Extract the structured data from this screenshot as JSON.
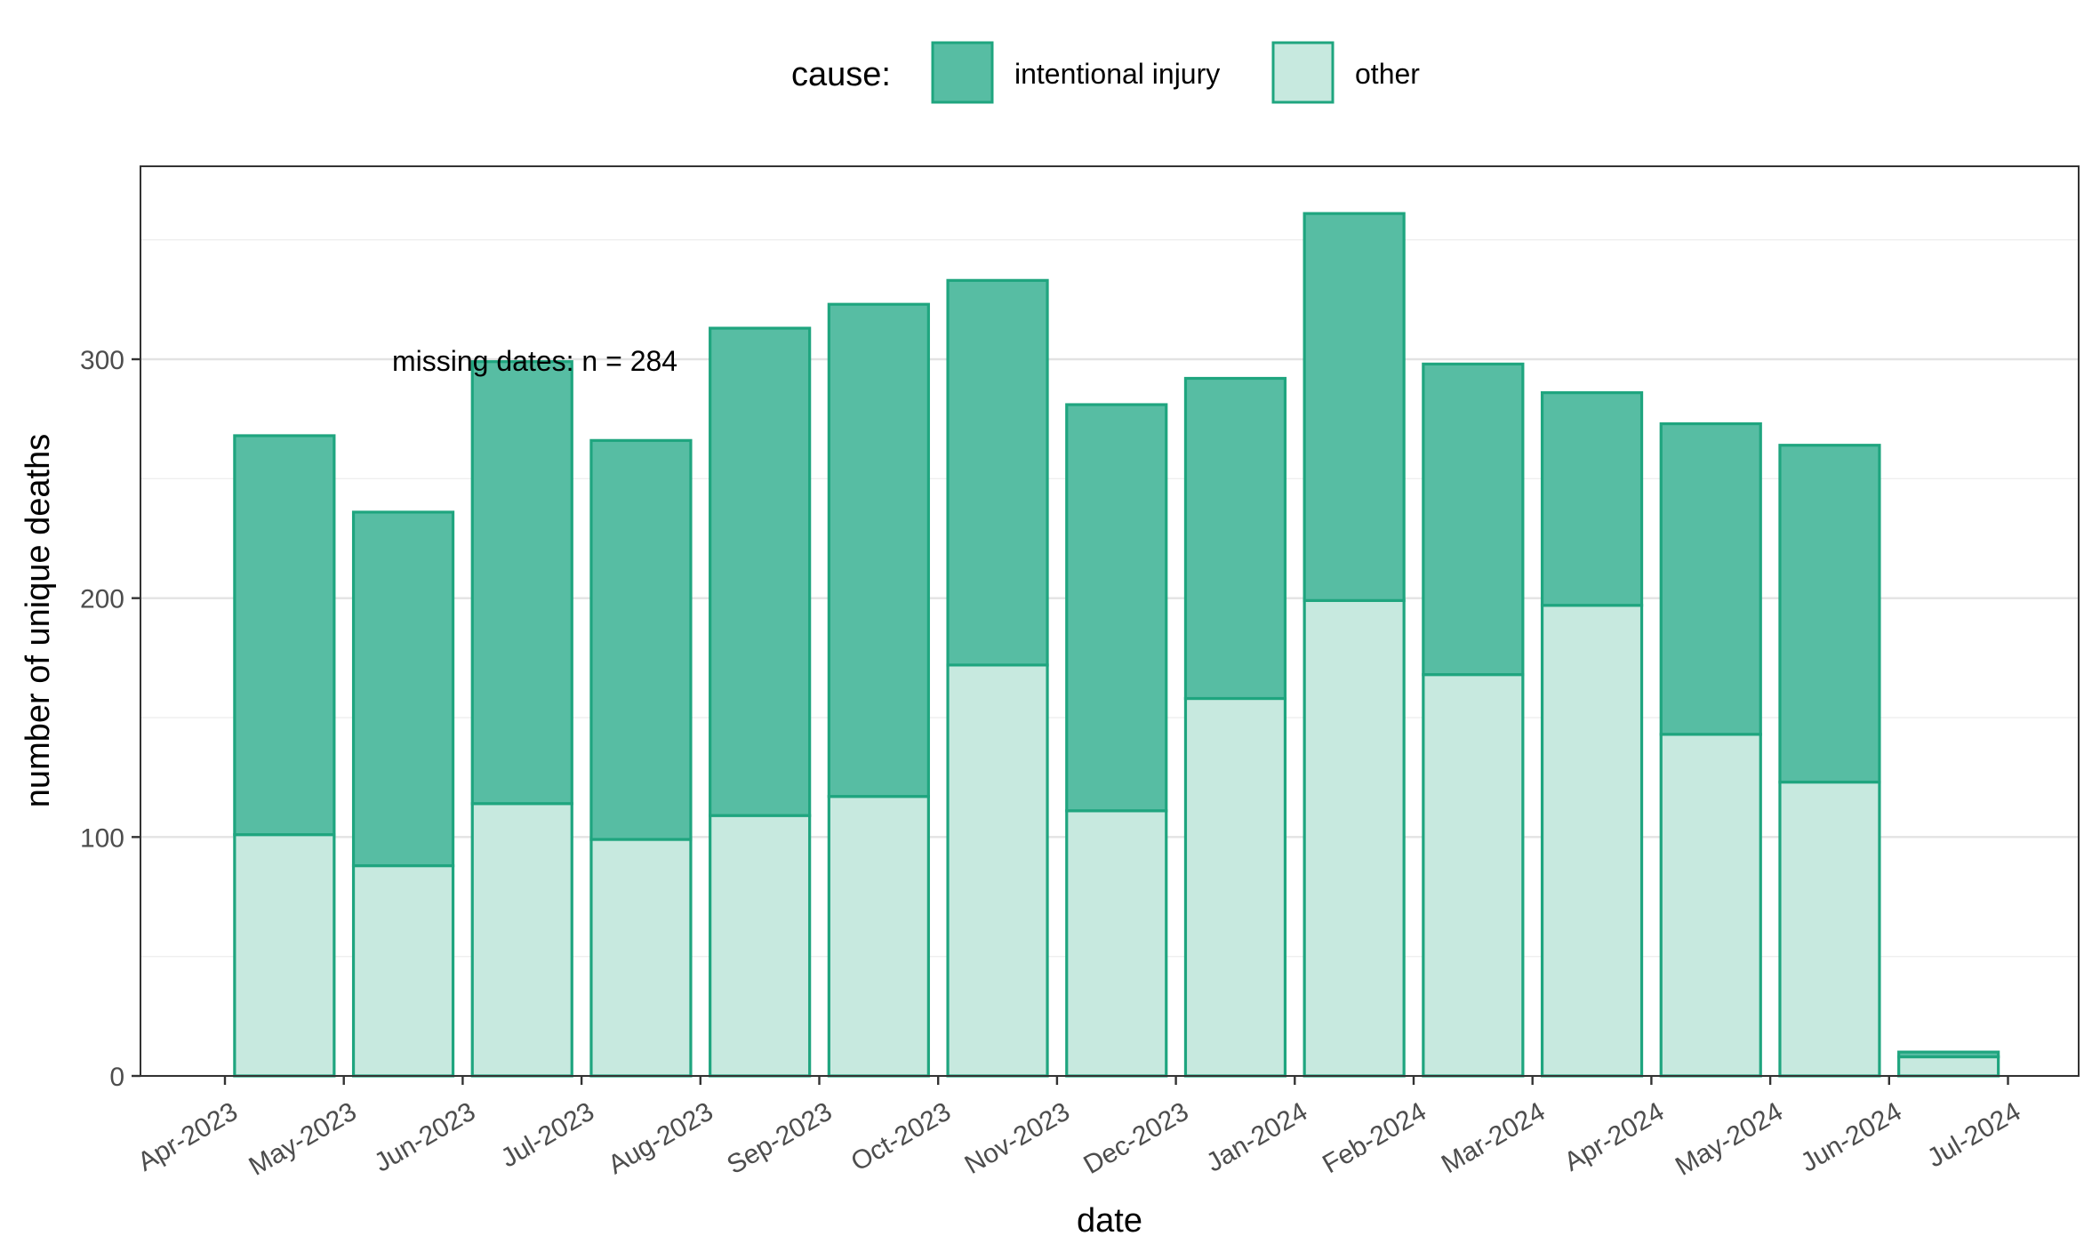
{
  "chart_data": {
    "type": "bar",
    "stacked": true,
    "title": "",
    "xlabel": "date",
    "ylabel": "number of unique deaths",
    "categories": [
      "Apr-2023",
      "May-2023",
      "Jun-2023",
      "Jul-2023",
      "Aug-2023",
      "Sep-2023",
      "Oct-2023",
      "Nov-2023",
      "Dec-2023",
      "Jan-2024",
      "Feb-2024",
      "Mar-2024",
      "Apr-2024",
      "May-2024",
      "Jun-2024",
      "Jul-2024"
    ],
    "series": [
      {
        "name": "other",
        "color": "#c7e9df",
        "values": [
          101,
          88,
          114,
          99,
          109,
          117,
          172,
          111,
          158,
          199,
          168,
          197,
          143,
          123,
          8,
          0
        ]
      },
      {
        "name": "intentional injury",
        "color": "#57bda3",
        "values": [
          167,
          148,
          185,
          167,
          204,
          206,
          161,
          170,
          134,
          162,
          130,
          89,
          130,
          141,
          2,
          0
        ]
      }
    ],
    "ylim": [
      0,
      380
    ],
    "yticks": [
      0,
      100,
      200,
      300
    ],
    "grid": true,
    "legend": {
      "title": "cause:",
      "position": "top",
      "entries": [
        "intentional injury",
        "other"
      ]
    },
    "annotation": "missing dates: n = 284",
    "bar_stroke_color": "#1fa57f"
  }
}
